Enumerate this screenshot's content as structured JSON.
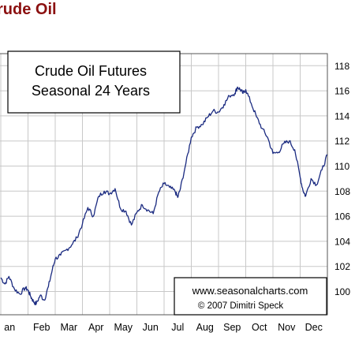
{
  "page": {
    "title": "rude Oil"
  },
  "colors": {
    "title": "#8b1010",
    "line": "#1a2a80",
    "grid": "#c8c8c8",
    "frame": "#555555",
    "text": "#000000"
  },
  "chart_data": {
    "type": "line",
    "title_lines": [
      "Crude Oil Futures",
      "Seasonal 24 Years"
    ],
    "credit_lines": [
      "www.seasonalcharts.com",
      "© 2007  Dimitri Speck"
    ],
    "x_tick_labels": [
      "an",
      "Feb",
      "Mar",
      "Apr",
      "May",
      "Jun",
      "Jul",
      "Aug",
      "Sep",
      "Oct",
      "Nov",
      "Dec"
    ],
    "y_tick_labels": [
      "100",
      "102",
      "104",
      "106",
      "108",
      "110",
      "112",
      "114",
      "116",
      "118"
    ],
    "xlim": [
      0,
      12
    ],
    "ylim": [
      98,
      119
    ],
    "grid": true,
    "y_axis_side": "right",
    "series": [
      {
        "x": [
          0,
          0.15,
          0.3,
          0.5,
          0.7,
          0.9,
          1.0,
          1.1,
          1.2,
          1.3,
          1.45,
          1.6,
          1.75,
          1.9,
          2.0,
          2.2,
          2.4,
          2.6,
          2.8,
          3.0,
          3.2,
          3.4,
          3.6,
          3.8,
          4.0,
          4.2,
          4.4,
          4.6,
          4.8,
          5.0,
          5.2,
          5.4,
          5.6,
          5.8,
          6.0,
          6.2,
          6.4,
          6.5,
          6.6,
          6.8,
          7.0,
          7.2,
          7.4,
          7.6,
          7.8,
          8.0,
          8.2,
          8.4,
          8.6,
          8.7,
          8.8,
          8.9,
          9.0,
          9.2,
          9.4,
          9.6,
          9.8,
          10.0,
          10.2,
          10.4,
          10.6,
          10.8,
          11.0,
          11.1,
          11.2,
          11.4,
          11.6,
          11.8,
          12.0
        ],
        "values": [
          101.1,
          100.6,
          101.2,
          100.2,
          99.8,
          100.3,
          100.1,
          99.6,
          99.2,
          99.0,
          99.7,
          99.3,
          100.4,
          101.8,
          102.6,
          102.9,
          103.3,
          103.7,
          104.3,
          105.4,
          106.7,
          106.0,
          107.6,
          108.0,
          107.8,
          108.2,
          106.6,
          106.4,
          105.3,
          106.3,
          106.9,
          106.5,
          106.2,
          107.9,
          108.6,
          108.3,
          108.0,
          107.5,
          108.2,
          110.2,
          112.3,
          113.1,
          113.3,
          113.9,
          114.4,
          114.3,
          114.9,
          115.6,
          115.8,
          116.3,
          116.1,
          115.8,
          116.1,
          115.0,
          113.9,
          113.0,
          112.3,
          111.0,
          111.1,
          111.8,
          112.0,
          111.3,
          109.1,
          108.1,
          107.6,
          109.0,
          108.5,
          109.7,
          110.9
        ]
      }
    ]
  }
}
